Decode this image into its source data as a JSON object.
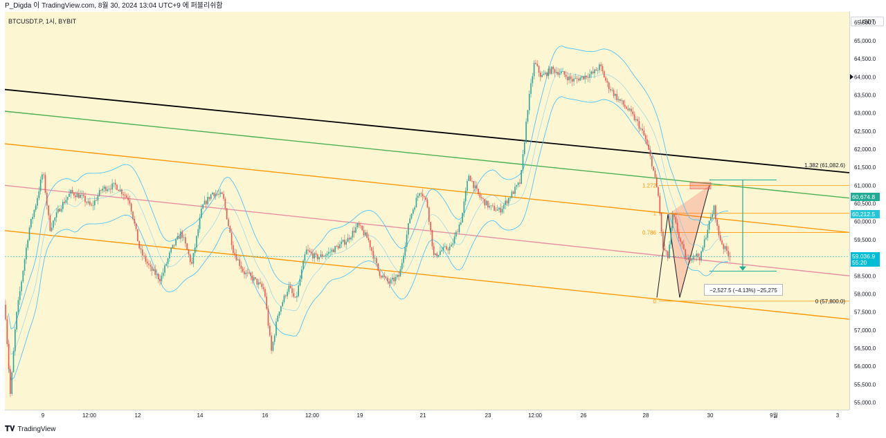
{
  "header": {
    "publisher": "P_Digda 이 TradingView.com, 8월 30, 2024 13:04 UTC+9 에 퍼블리쉬함"
  },
  "symbol": "BTCUSDT.P, 1시, BYBIT",
  "footer": {
    "brand": "TradingView"
  },
  "chart_data": {
    "type": "candlestick",
    "unit": "USDT",
    "ylim": [
      54800,
      65800
    ],
    "y_ticks": [
      55000,
      55500,
      56000,
      56500,
      57000,
      57500,
      58000,
      58500,
      59000,
      59500,
      60000,
      60500,
      61000,
      61500,
      62000,
      62500,
      63000,
      63500,
      64000,
      64500,
      65000,
      65500
    ],
    "y_tick_labels": [
      "55,000.0",
      "55,500.0",
      "56,000.0",
      "56,500.0",
      "57,000.0",
      "57,500.0",
      "58,000.0",
      "58,500.0",
      "59,000.0",
      "59,500.0",
      "60,000.0",
      "60,500.0",
      "61,000.0",
      "61,500.0",
      "62,000.0",
      "62,500.0",
      "63,000.0",
      "63,500.0",
      "64,000.0",
      "64,500.0",
      "65,000.0",
      "65,500.0"
    ],
    "x_ticks": [
      "9",
      "12:00",
      "12",
      "14",
      "16",
      "12:00",
      "19",
      "21",
      "23",
      "12:00",
      "26",
      "28",
      "30",
      "9월",
      "3"
    ],
    "price_tags": [
      {
        "label": "60,674.8",
        "price": 60674.8,
        "color": "#22ab94"
      },
      {
        "label": "60,212.5",
        "price": 60212.5,
        "color": "#26c6da"
      },
      {
        "label": "59,036.9",
        "price": 59036.9,
        "color": "#00bcd4"
      },
      {
        "label": "55:20",
        "price": 58870,
        "color": "#00bcd4"
      }
    ],
    "fib_levels": [
      {
        "label": "1.272",
        "price": 61000
      },
      {
        "label": "1",
        "price": 60230
      },
      {
        "label": "0.786",
        "price": 59700
      },
      {
        "label": "0",
        "price": 57800
      }
    ],
    "fib_ext_label": "1.382 (61,082.6)",
    "fib_zero_label": "0 (57,800.0)",
    "measure_label": "−2,527.5 (−4.13%) −25,275",
    "path": [
      [
        0,
        57700
      ],
      [
        8,
        55200
      ],
      [
        16,
        57300
      ],
      [
        25,
        58500
      ],
      [
        35,
        59800
      ],
      [
        45,
        60500
      ],
      [
        55,
        61400
      ],
      [
        65,
        59800
      ],
      [
        80,
        60400
      ],
      [
        95,
        60800
      ],
      [
        110,
        60700
      ],
      [
        125,
        60400
      ],
      [
        140,
        60900
      ],
      [
        160,
        61000
      ],
      [
        180,
        60600
      ],
      [
        195,
        59200
      ],
      [
        210,
        58700
      ],
      [
        225,
        58400
      ],
      [
        240,
        59200
      ],
      [
        255,
        59700
      ],
      [
        270,
        58800
      ],
      [
        285,
        60400
      ],
      [
        300,
        60800
      ],
      [
        315,
        60700
      ],
      [
        330,
        59200
      ],
      [
        345,
        58600
      ],
      [
        360,
        58400
      ],
      [
        375,
        58100
      ],
      [
        385,
        56400
      ],
      [
        395,
        57500
      ],
      [
        410,
        58200
      ],
      [
        420,
        57800
      ],
      [
        435,
        59200
      ],
      [
        450,
        59000
      ],
      [
        465,
        59100
      ],
      [
        480,
        59300
      ],
      [
        495,
        59500
      ],
      [
        510,
        59900
      ],
      [
        525,
        59500
      ],
      [
        540,
        58600
      ],
      [
        555,
        58300
      ],
      [
        570,
        58500
      ],
      [
        585,
        60100
      ],
      [
        600,
        60900
      ],
      [
        610,
        60500
      ],
      [
        620,
        59000
      ],
      [
        630,
        59200
      ],
      [
        645,
        59300
      ],
      [
        660,
        60100
      ],
      [
        670,
        61300
      ],
      [
        685,
        60700
      ],
      [
        700,
        60400
      ],
      [
        715,
        60300
      ],
      [
        730,
        60700
      ],
      [
        745,
        61100
      ],
      [
        755,
        63100
      ],
      [
        765,
        64400
      ],
      [
        775,
        64000
      ],
      [
        790,
        64200
      ],
      [
        805,
        64100
      ],
      [
        820,
        63900
      ],
      [
        835,
        64000
      ],
      [
        850,
        64100
      ],
      [
        860,
        64300
      ],
      [
        870,
        63800
      ],
      [
        885,
        63400
      ],
      [
        900,
        63100
      ],
      [
        915,
        62700
      ],
      [
        925,
        62300
      ],
      [
        935,
        61600
      ],
      [
        945,
        60600
      ],
      [
        950,
        59300
      ],
      [
        958,
        59000
      ],
      [
        965,
        60200
      ],
      [
        975,
        59500
      ],
      [
        985,
        58900
      ],
      [
        995,
        59100
      ],
      [
        1005,
        59000
      ],
      [
        1015,
        59800
      ],
      [
        1025,
        60400
      ],
      [
        1030,
        59700
      ],
      [
        1038,
        59300
      ],
      [
        1048,
        59050
      ]
    ],
    "trend_lines": [
      {
        "name": "black",
        "color": "#000000",
        "p1": [
          0,
          63650
        ],
        "p2": [
          1220,
          61350
        ]
      },
      {
        "name": "green",
        "color": "#4caf50",
        "p1": [
          0,
          63050
        ],
        "p2": [
          1220,
          60650
        ]
      },
      {
        "name": "orange-top",
        "color": "#ff9800",
        "p1": [
          0,
          62150
        ],
        "p2": [
          1220,
          59700
        ]
      },
      {
        "name": "pink",
        "color": "#e88fa2",
        "p1": [
          0,
          61000
        ],
        "p2": [
          1220,
          58500
        ]
      },
      {
        "name": "orange-bottom",
        "color": "#ff9800",
        "p1": [
          0,
          59750
        ],
        "p2": [
          1220,
          57300
        ]
      }
    ],
    "colors": {
      "up": "#26a69a",
      "down": "#ef5350",
      "band": "#4fc3f7",
      "bg": "#fdf6d3"
    }
  }
}
